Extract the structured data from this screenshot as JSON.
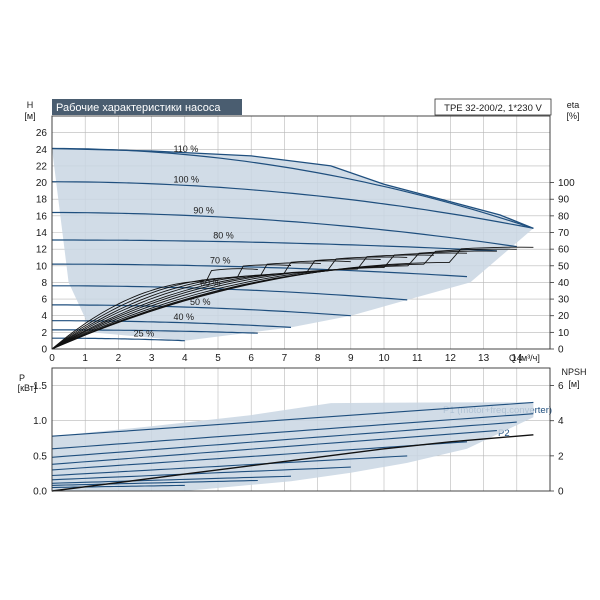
{
  "colors": {
    "envelope": "#c9d6e3",
    "curve": "#1f4f7e",
    "eta": "#111111",
    "title_bg": "#4a5d70",
    "title_fg": "#ffffff",
    "grid": "#b8b8b8"
  },
  "chart_data": [
    {
      "type": "line",
      "title": "Рабочие характеристики насоса",
      "model_label": "TPE 32-200/2, 1*230 V",
      "xlabel": "Q [м³/ч]",
      "ylabel_left": [
        "H",
        "[м]"
      ],
      "ylabel_right": [
        "eta",
        "[%]"
      ],
      "x_ticks": [
        0,
        1,
        2,
        3,
        4,
        5,
        6,
        7,
        8,
        9,
        10,
        11,
        12,
        13,
        14
      ],
      "xlim": [
        0,
        15
      ],
      "ylim": [
        0,
        28
      ],
      "y_ticks": [
        0,
        2,
        4,
        6,
        8,
        10,
        12,
        14,
        16,
        18,
        20,
        22,
        24,
        26
      ],
      "y2_ticks": [
        0,
        10,
        20,
        30,
        40,
        50,
        60,
        70,
        80,
        90,
        100
      ],
      "y2lim": [
        0,
        140
      ],
      "grid": true,
      "speed_labels": [
        "110 %",
        "100 %",
        "90 %",
        "80 %",
        "70 %",
        "60 %",
        "50 %",
        "40 %",
        "25 %"
      ],
      "head_curves": [
        {
          "label": "110 %",
          "h0": 24.1,
          "qmax": 14.5,
          "hend": 14.5,
          "label_q": 4.2
        },
        {
          "label": "100 %",
          "h0": 20.1,
          "qmax": 14.5,
          "hend": 14.5,
          "label_q": 4.2
        },
        {
          "label": "90 %",
          "h0": 16.4,
          "qmax": 14.0,
          "hend": 12.3,
          "label_q": 4.8
        },
        {
          "label": "80 %",
          "h0": 13.1,
          "qmax": 13.4,
          "hend": 11.8,
          "label_q": 5.4
        },
        {
          "label": "70 %",
          "h0": 10.2,
          "qmax": 12.5,
          "hend": 8.7,
          "label_q": 5.3
        },
        {
          "label": "60 %",
          "h0": 7.6,
          "qmax": 10.7,
          "hend": 5.9,
          "label_q": 5.0
        },
        {
          "label": "50 %",
          "h0": 5.3,
          "qmax": 9.0,
          "hend": 4.0,
          "label_q": 4.7
        },
        {
          "label": "40 %",
          "h0": 3.4,
          "qmax": 7.2,
          "hend": 2.6,
          "label_q": 4.2
        },
        {
          "label": "",
          "h0": 2.3,
          "qmax": 6.2,
          "hend": 1.9,
          "label_q": 0
        },
        {
          "label": "25 %",
          "h0": 1.3,
          "qmax": 4.0,
          "hend": 1.0,
          "label_q": 3.0
        }
      ],
      "envelope": {
        "top": [
          [
            0,
            24.1
          ],
          [
            3,
            23.8
          ],
          [
            6,
            23.2
          ],
          [
            8.4,
            22.0
          ],
          [
            10,
            19.8
          ],
          [
            12,
            17.7
          ],
          [
            13.5,
            16.1
          ],
          [
            14.5,
            14.5
          ]
        ],
        "right": [
          [
            14.5,
            14.5
          ],
          [
            12.6,
            8.0
          ],
          [
            10.7,
            5.9
          ],
          [
            9.0,
            4.0
          ],
          [
            7.2,
            2.6
          ],
          [
            4.0,
            1.0
          ]
        ],
        "left": [
          [
            4.0,
            1.0
          ],
          [
            1.2,
            2.0
          ],
          [
            0.5,
            8.0
          ],
          [
            0,
            24.1
          ]
        ]
      },
      "eta_curves": [
        {
          "qmax": 14.5,
          "eta_max": 52,
          "q_peak": 12.0
        },
        {
          "qmax": 14.0,
          "eta_max": 51,
          "q_peak": 11.5
        },
        {
          "qmax": 13.4,
          "eta_max": 50,
          "q_peak": 11.0
        },
        {
          "qmax": 12.5,
          "eta_max": 49,
          "q_peak": 10.2
        },
        {
          "qmax": 11.5,
          "eta_max": 48,
          "q_peak": 9.3
        },
        {
          "qmax": 10.7,
          "eta_max": 47,
          "q_peak": 8.5
        },
        {
          "qmax": 9.9,
          "eta_max": 46,
          "q_peak": 7.8
        },
        {
          "qmax": 9.0,
          "eta_max": 45,
          "q_peak": 7.0
        },
        {
          "qmax": 8.1,
          "eta_max": 44,
          "q_peak": 6.3
        },
        {
          "qmax": 7.2,
          "eta_max": 43,
          "q_peak": 5.6
        },
        {
          "qmax": 6.2,
          "eta_max": 41,
          "q_peak": 4.8
        }
      ]
    },
    {
      "type": "line",
      "ylabel_left": [
        "P",
        "[кВт]"
      ],
      "ylabel_right": [
        "NPSH",
        "[м]"
      ],
      "xlim": [
        0,
        15
      ],
      "ylim": [
        0,
        1.75
      ],
      "y_ticks": [
        0.0,
        0.5,
        1.0,
        1.5
      ],
      "y_tick_labels": [
        "0.0",
        "0.5",
        "1.0",
        "1.5"
      ],
      "y2_ticks": [
        0,
        2,
        4,
        6
      ],
      "y2lim": [
        0,
        7
      ],
      "grid": true,
      "series_labels": [
        "P1 (motor+freq.converter)",
        "P2"
      ],
      "envelope": [
        [
          0,
          0.78
        ],
        [
          3,
          0.92
        ],
        [
          6,
          1.08
        ],
        [
          8.4,
          1.25
        ],
        [
          12,
          1.26
        ],
        [
          14.5,
          1.26
        ],
        [
          14.5,
          1.05
        ],
        [
          12.5,
          0.6
        ],
        [
          10.7,
          0.4
        ],
        [
          9.0,
          0.26
        ],
        [
          7.2,
          0.14
        ],
        [
          4.0,
          0.0
        ],
        [
          0,
          0.0
        ]
      ],
      "power_curves": [
        {
          "qmax": 14.5,
          "p0": 0.78,
          "pend": 1.26
        },
        {
          "qmax": 14.5,
          "p0": 0.6,
          "pend": 1.1
        },
        {
          "qmax": 14.0,
          "p0": 0.48,
          "pend": 0.98
        },
        {
          "qmax": 13.4,
          "p0": 0.38,
          "pend": 0.86
        },
        {
          "qmax": 12.5,
          "p0": 0.3,
          "pend": 0.7
        },
        {
          "qmax": 10.7,
          "p0": 0.22,
          "pend": 0.5
        },
        {
          "qmax": 9.0,
          "p0": 0.16,
          "pend": 0.34
        },
        {
          "qmax": 7.2,
          "p0": 0.11,
          "pend": 0.21
        },
        {
          "qmax": 6.2,
          "p0": 0.08,
          "pend": 0.15
        },
        {
          "qmax": 4.0,
          "p0": 0.05,
          "pend": 0.08
        }
      ],
      "p2_curve": [
        [
          0,
          0.0
        ],
        [
          2,
          0.12
        ],
        [
          4,
          0.24
        ],
        [
          6,
          0.36
        ],
        [
          8,
          0.48
        ],
        [
          10,
          0.6
        ],
        [
          12,
          0.7
        ],
        [
          14.5,
          0.8
        ]
      ]
    }
  ]
}
